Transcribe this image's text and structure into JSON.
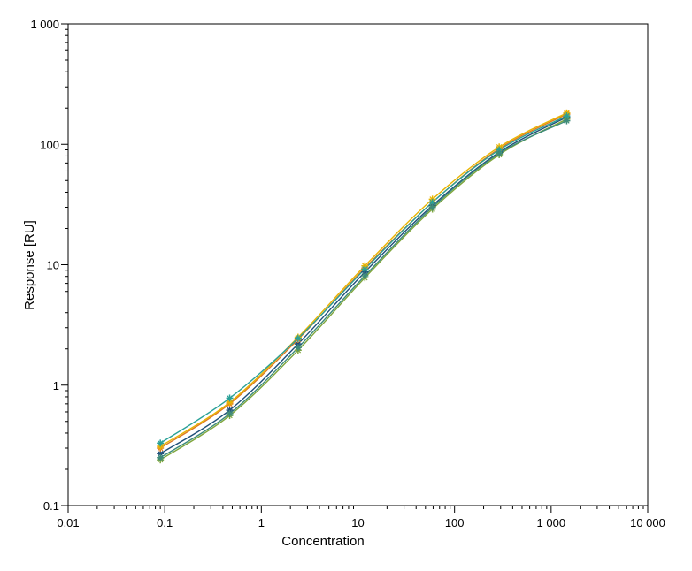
{
  "chart_data": {
    "type": "scatter",
    "title": "",
    "xlabel": "Concentration",
    "ylabel": "Response [RU]",
    "x_scale": "log",
    "y_scale": "log",
    "xlim": [
      0.01,
      10000
    ],
    "ylim": [
      0.1,
      1000
    ],
    "x_ticks": [
      "0.01",
      "0.1",
      "1",
      "10",
      "100",
      "1 000",
      "10 000"
    ],
    "y_ticks": [
      "0.1",
      "1",
      "10",
      "100",
      "1 000"
    ],
    "grid": false,
    "legend": "none",
    "x": [
      0.09,
      0.47,
      2.4,
      11.8,
      59,
      290,
      1450
    ],
    "series": [
      {
        "color": "#1f4e79",
        "values": [
          0.27,
          0.62,
          2.2,
          8.7,
          31,
          86,
          168
        ]
      },
      {
        "color": "#e07b20",
        "values": [
          0.3,
          0.7,
          2.4,
          9.4,
          33,
          92,
          178
        ]
      },
      {
        "color": "#e8b400",
        "values": [
          0.31,
          0.72,
          2.5,
          9.8,
          35,
          95,
          182
        ]
      },
      {
        "color": "#7fa63c",
        "values": [
          0.24,
          0.56,
          1.95,
          7.8,
          29,
          82,
          162
        ]
      },
      {
        "color": "#2aa198",
        "values": [
          0.33,
          0.78,
          2.45,
          9.2,
          33,
          90,
          172
        ]
      },
      {
        "color": "#3d8b7a",
        "values": [
          0.25,
          0.58,
          2.05,
          8.1,
          30,
          84,
          157
        ]
      }
    ]
  }
}
